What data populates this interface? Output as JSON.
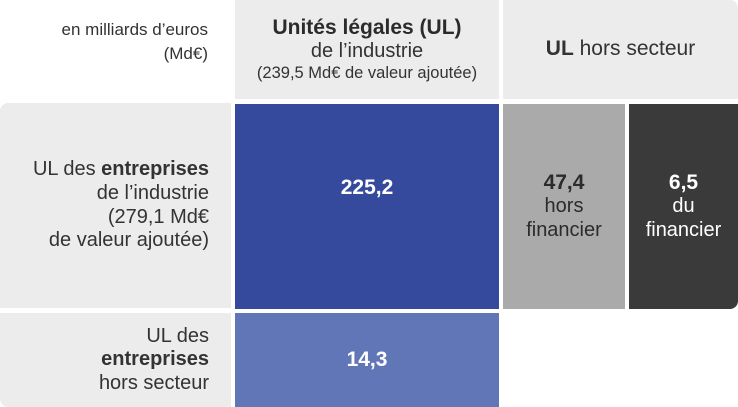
{
  "unit_label": [
    "en milliards d’euros",
    "(Md€)"
  ],
  "columns": {
    "ul_industrie": {
      "title": "Unités légales (UL)",
      "subtitle": "de l’industrie",
      "value_added": "(239,5 Md€ de valeur ajoutée)"
    },
    "ul_hors_secteur": {
      "bold": "UL",
      "rest": " hors secteur"
    }
  },
  "rows": {
    "entreprises_industrie": {
      "line1_prefix": "UL des ",
      "line1_bold": "entreprises",
      "line2": "de l’industrie",
      "line3": "(279,1 Md€",
      "line4": "de valeur ajoutée)"
    },
    "entreprises_hors_secteur": {
      "line1": "UL des",
      "line2_bold": "entreprises",
      "line3": "hors secteur"
    }
  },
  "cells": {
    "industrie_industrie": {
      "value": "225,2",
      "color": "#364a9d"
    },
    "industrie_hors_financier": {
      "value": "47,4",
      "label1": "hors",
      "label2": "financier",
      "color": "#aaaaaa"
    },
    "industrie_financier": {
      "value": "6,5",
      "label1": "du",
      "label2": "financier",
      "color": "#3a3a3a"
    },
    "hors_secteur_industrie": {
      "value": "14,3",
      "color": "#6176b6"
    }
  }
}
